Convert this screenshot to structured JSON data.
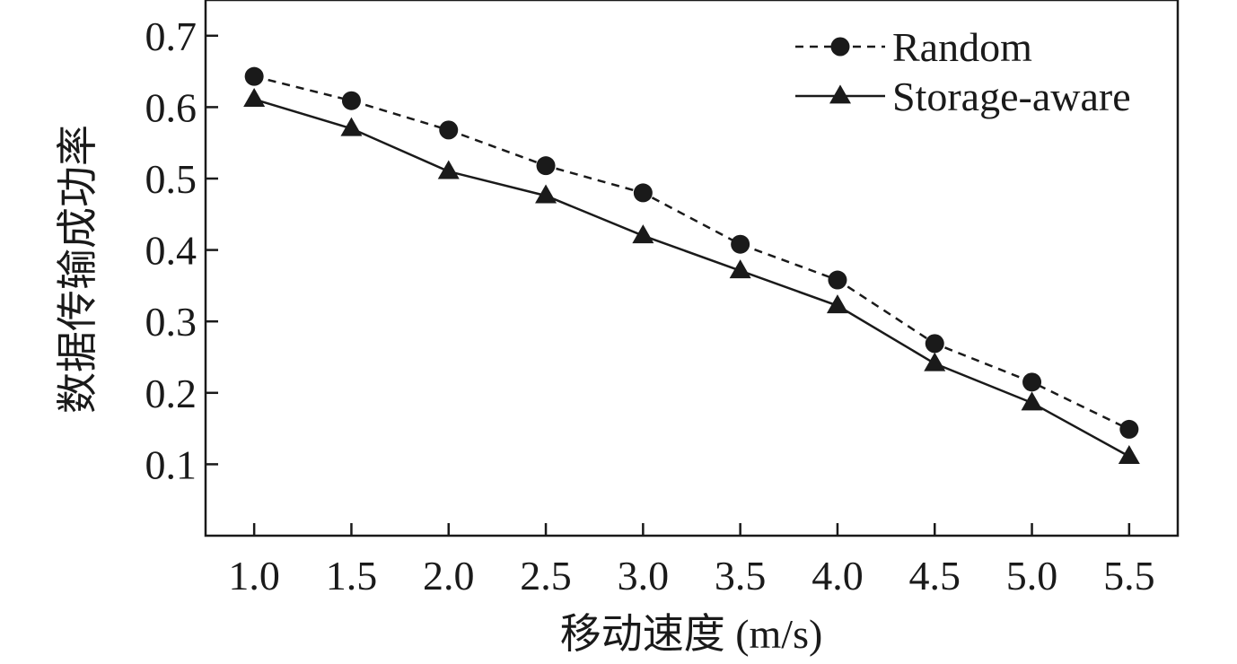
{
  "chart_data": {
    "type": "line",
    "title": "",
    "xlabel": "移动速度 (m/s)",
    "ylabel": "数据传输成功率",
    "x": [
      1.0,
      1.5,
      2.0,
      2.5,
      3.0,
      3.5,
      4.0,
      4.5,
      5.0,
      5.5
    ],
    "x_tick_labels": [
      "1.0",
      "1.5",
      "2.0",
      "2.5",
      "3.0",
      "3.5",
      "4.0",
      "4.5",
      "5.0",
      "5.5"
    ],
    "y_ticks": [
      0.1,
      0.2,
      0.3,
      0.4,
      0.5,
      0.6,
      0.7
    ],
    "y_tick_labels": [
      "0.1",
      "0.2",
      "0.3",
      "0.4",
      "0.5",
      "0.6",
      "0.7"
    ],
    "xlim": [
      0.75,
      5.75
    ],
    "ylim": [
      0.0,
      0.75
    ],
    "grid": false,
    "legend_position": "top-right",
    "series": [
      {
        "name": "Random",
        "marker": "circle",
        "line_style": "dashed",
        "color": "#1a1a1a",
        "values": [
          0.643,
          0.609,
          0.568,
          0.518,
          0.48,
          0.408,
          0.358,
          0.269,
          0.215,
          0.149
        ]
      },
      {
        "name": "Storage-aware",
        "marker": "triangle",
        "line_style": "solid",
        "color": "#1a1a1a",
        "values": [
          0.611,
          0.57,
          0.51,
          0.476,
          0.42,
          0.371,
          0.322,
          0.241,
          0.186,
          0.111
        ]
      }
    ]
  }
}
